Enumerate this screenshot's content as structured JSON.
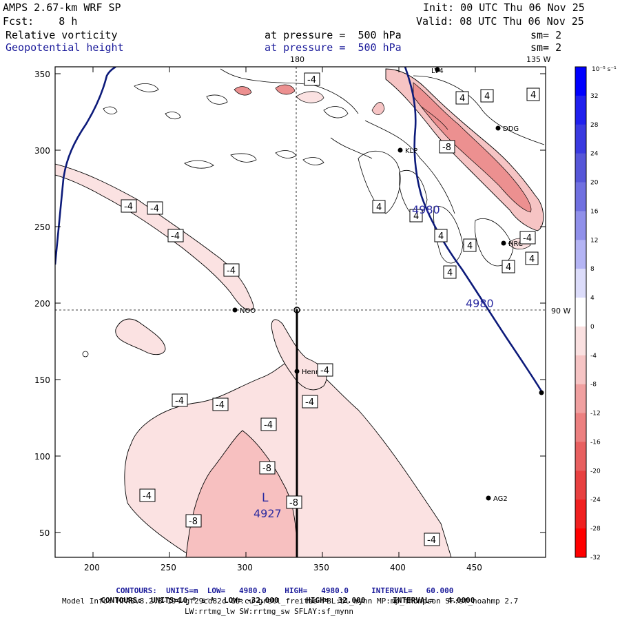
{
  "header": {
    "model": "AMPS 2.67-km WRF SP",
    "init": "Init: 00 UTC Thu 06 Nov 25",
    "fcst": "Fcst:    8 h",
    "valid": "Valid: 08 UTC Thu 06 Nov 25",
    "field1": "Relative vorticity",
    "field1_level": "at pressure =  500 hPa",
    "field1_sm": "sm= 2",
    "field2": "Geopotential height",
    "field2_level": "at pressure =  500 hPa",
    "field2_sm": "sm= 2"
  },
  "map": {
    "meridian_180": "180",
    "meridian_135": "135 W",
    "parallel_90": "90 W",
    "x_ticks": [
      "200",
      "250",
      "300",
      "350",
      "400",
      "450"
    ],
    "y_ticks": [
      "350",
      "300",
      "250",
      "200",
      "150",
      "100",
      "50"
    ],
    "stations": [
      {
        "name": "LV4",
        "x": 425,
        "y": 353
      },
      {
        "name": "DDG",
        "x": 465,
        "y": 314
      },
      {
        "name": "KLP",
        "x": 402,
        "y": 300
      },
      {
        "name": "HRC",
        "x": 468,
        "y": 239
      },
      {
        "name": "NOO",
        "x": 293,
        "y": 195
      },
      {
        "name": "Henry",
        "x": 334,
        "y": 155
      },
      {
        "name": "AG2",
        "x": 460,
        "y": 72
      }
    ],
    "box_labels": [
      {
        "t": "-4",
        "x": 193,
        "y": 263
      },
      {
        "t": "-4",
        "x": 225,
        "y": 261
      },
      {
        "t": "-4",
        "x": 256,
        "y": 243
      },
      {
        "t": "-4",
        "x": 336,
        "y": 222
      },
      {
        "t": "-4",
        "x": 453,
        "y": 351
      },
      {
        "t": "4",
        "x": 670,
        "y": 0
      },
      {
        "t": "-8",
        "x": 647,
        "y": 0
      },
      {
        "t": "4",
        "x": 550,
        "y": 0
      },
      {
        "t": "4",
        "x": 604,
        "y": 0
      },
      {
        "t": "4",
        "x": 640,
        "y": 0
      },
      {
        "t": "4",
        "x": 683,
        "y": 0
      },
      {
        "t": "-4",
        "x": 766,
        "y": 0
      },
      {
        "t": "4",
        "x": 772,
        "y": 0
      },
      {
        "t": "4",
        "x": 738,
        "y": 0
      },
      {
        "t": "4",
        "x": 653,
        "y": 0
      },
      {
        "t": "-4",
        "x": 472,
        "y": 0
      },
      {
        "t": "-4",
        "x": 451,
        "y": 0
      },
      {
        "t": "-4",
        "x": 262,
        "y": 0
      },
      {
        "t": "-4",
        "x": 320,
        "y": 0
      },
      {
        "t": "-4",
        "x": 390,
        "y": 0
      },
      {
        "t": "-8",
        "x": 390,
        "y": 0
      },
      {
        "t": "-4",
        "x": 214,
        "y": 0
      },
      {
        "t": "-8",
        "x": 428,
        "y": 0
      },
      {
        "t": "-8",
        "x": 281,
        "y": 0
      },
      {
        "t": "-4",
        "x": 627,
        "y": 0
      },
      {
        "t": "4",
        "x": 709,
        "y": 0
      },
      {
        "t": "4",
        "x": 780,
        "y": 0
      }
    ],
    "height_labels": [
      {
        "t": "4980",
        "x": 622,
        "y": 0
      },
      {
        "t": "4980",
        "x": 700,
        "y": 0
      }
    ],
    "low": {
      "letter": "L",
      "value": "4927"
    }
  },
  "colorbar": {
    "units": "10⁻⁵ s⁻¹",
    "labels": [
      "32",
      "28",
      "24",
      "20",
      "16",
      "12",
      "8",
      "4",
      "0",
      "-4",
      "-8",
      "-12",
      "-16",
      "-20",
      "-24",
      "-28",
      "-32"
    ],
    "colors": [
      "#0000ff",
      "#2020ee",
      "#3a3ae0",
      "#5656d8",
      "#7070e0",
      "#9090ea",
      "#b4b4f4",
      "#dcdcfa",
      "#ffffff",
      "#fae0e0",
      "#f6c4c4",
      "#f0a0a0",
      "#ec8080",
      "#e86060",
      "#e84040",
      "#f02020",
      "#ff0000"
    ]
  },
  "footer": {
    "line1_a": "CONTOURS:  UNITS=m  LOW=   4980.0",
    "line1_b": "HIGH=   4980.0",
    "line1_c": "INTERVAL=   60.000",
    "line2_a": "CONTOURS:  UNITS=10⁻⁵ s⁻¹  LOW= -32.000",
    "line2_b": "HIGH=  32.000",
    "line2_c": "INTERVAL=   4.0000",
    "line3": "Model Info: MPASv8.2.3-194-gf29cd82c CU:cu_grell_freitas PBL:bl_mynn MP:mp_thompson SF:sf_noahmp 2.7",
    "line4": "LW:rrtmg_lw SW:rrtmg_sw SFLAY:sf_mynn"
  }
}
